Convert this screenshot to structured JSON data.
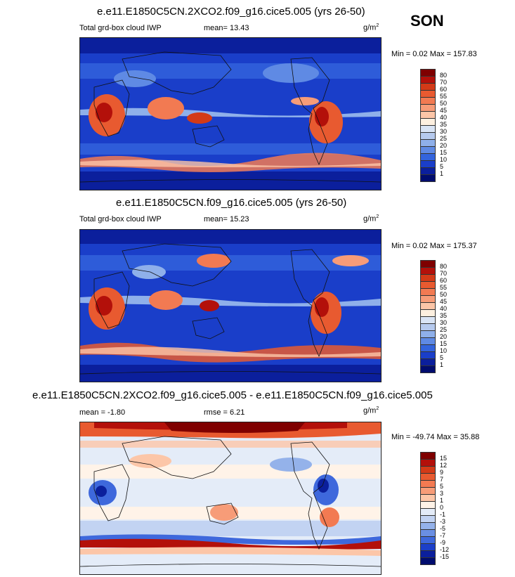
{
  "season": "SON",
  "panels": [
    {
      "title": "e.e11.E1850C5CN.2XCO2.f09_g16.cice5.005 (yrs 26-50)",
      "left_label": "Total grd-box cloud IWP",
      "mid_label": "mean=  13.43",
      "unit": "g/m",
      "unit_sup": "2",
      "minmax": "Min =  0.02 Max = 157.83",
      "colorbar": [
        "80",
        "70",
        "60",
        "55",
        "50",
        "45",
        "40",
        "35",
        "30",
        "25",
        "20",
        "15",
        "10",
        "5",
        "1"
      ]
    },
    {
      "title": "e.e11.E1850C5CN.f09_g16.cice5.005 (yrs 26-50)",
      "left_label": "Total grd-box cloud IWP",
      "mid_label": "mean=  15.23",
      "unit": "g/m",
      "unit_sup": "2",
      "minmax": "Min =  0.02 Max = 175.37",
      "colorbar": [
        "80",
        "70",
        "60",
        "55",
        "50",
        "45",
        "40",
        "35",
        "30",
        "25",
        "20",
        "15",
        "10",
        "5",
        "1"
      ]
    },
    {
      "title": "e.e11.E1850C5CN.2XCO2.f09_g16.cice5.005 - e.e11.E1850C5CN.f09_g16.cice5.005",
      "left_label": "mean =  -1.80",
      "mid_label": "rmse =   6.21",
      "unit": "g/m",
      "unit_sup": "2",
      "minmax": "Min = -49.74 Max =  35.88",
      "colorbar": [
        "15",
        "12",
        "9",
        "7",
        "5",
        "3",
        "1",
        "0",
        "-1",
        "-3",
        "-5",
        "-7",
        "-9",
        "-12",
        "-15"
      ]
    }
  ],
  "colors": {
    "seq_top_to_bottom": [
      "#7f0000",
      "#b3100a",
      "#d33a17",
      "#e85a30",
      "#f27a52",
      "#f79c78",
      "#fcc6a8",
      "#fdf0e0",
      "#d9e4f5",
      "#b6caee",
      "#8fb0ea",
      "#5f8ae4",
      "#3364dd",
      "#1a3ec9",
      "#0b1f9c",
      "#000c6e"
    ],
    "div_top_to_bottom": [
      "#7f0000",
      "#b3100a",
      "#d33a17",
      "#e85a30",
      "#f27a52",
      "#f79c78",
      "#fcc6a8",
      "#fff3e8",
      "#e4ecf8",
      "#c2d3f2",
      "#94b2ea",
      "#6a8fe3",
      "#3e68dc",
      "#1c3fc9",
      "#0b1f9c",
      "#000c6e"
    ]
  },
  "chart_data": [
    {
      "type": "heatmap",
      "title": "e.e11.E1850C5CN.2XCO2.f09_g16.cice5.005 (yrs 26-50)",
      "variable": "Total grd-box cloud IWP",
      "units": "g/m2",
      "mean": 13.43,
      "min": 0.02,
      "max": 157.83,
      "contour_levels": [
        1,
        5,
        10,
        15,
        20,
        25,
        30,
        35,
        40,
        45,
        50,
        55,
        60,
        70,
        80
      ]
    },
    {
      "type": "heatmap",
      "title": "e.e11.E1850C5CN.f09_g16.cice5.005 (yrs 26-50)",
      "variable": "Total grd-box cloud IWP",
      "units": "g/m2",
      "mean": 15.23,
      "min": 0.02,
      "max": 175.37,
      "contour_levels": [
        1,
        5,
        10,
        15,
        20,
        25,
        30,
        35,
        40,
        45,
        50,
        55,
        60,
        70,
        80
      ]
    },
    {
      "type": "heatmap",
      "title": "e.e11.E1850C5CN.2XCO2.f09_g16.cice5.005 - e.e11.E1850C5CN.f09_g16.cice5.005",
      "units": "g/m2",
      "mean": -1.8,
      "rmse": 6.21,
      "min": -49.74,
      "max": 35.88,
      "contour_levels": [
        -15,
        -12,
        -9,
        -7,
        -5,
        -3,
        -1,
        0,
        1,
        3,
        5,
        7,
        9,
        12,
        15
      ]
    }
  ]
}
